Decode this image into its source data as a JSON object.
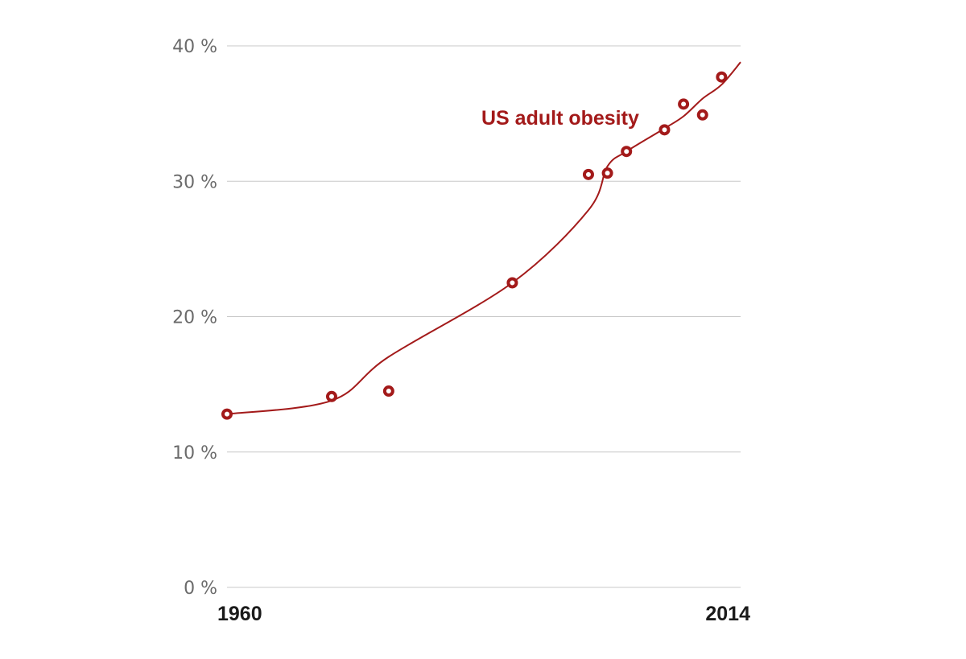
{
  "chart_data": {
    "type": "line",
    "title": "",
    "xlabel": "",
    "ylabel": "",
    "xlim": [
      1960,
      2014
    ],
    "ylim": [
      0,
      40
    ],
    "yticks": [
      0,
      10,
      20,
      30,
      40
    ],
    "ytick_labels": [
      "0 %",
      "10 %",
      "20 %",
      "30 %",
      "40 %"
    ],
    "xtick_labels": [
      "1960",
      "2014"
    ],
    "grid": true,
    "series": [
      {
        "name": "US adult obesity",
        "color": "#a31a1a",
        "x": [
          1960,
          1971,
          1977,
          1990,
          1998,
          2000,
          2002,
          2006,
          2008,
          2010,
          2012,
          2014
        ],
        "y": [
          12.8,
          14.1,
          14.5,
          22.5,
          30.5,
          30.6,
          32.2,
          33.8,
          35.7,
          34.9,
          37.7,
          38.8
        ]
      }
    ]
  }
}
